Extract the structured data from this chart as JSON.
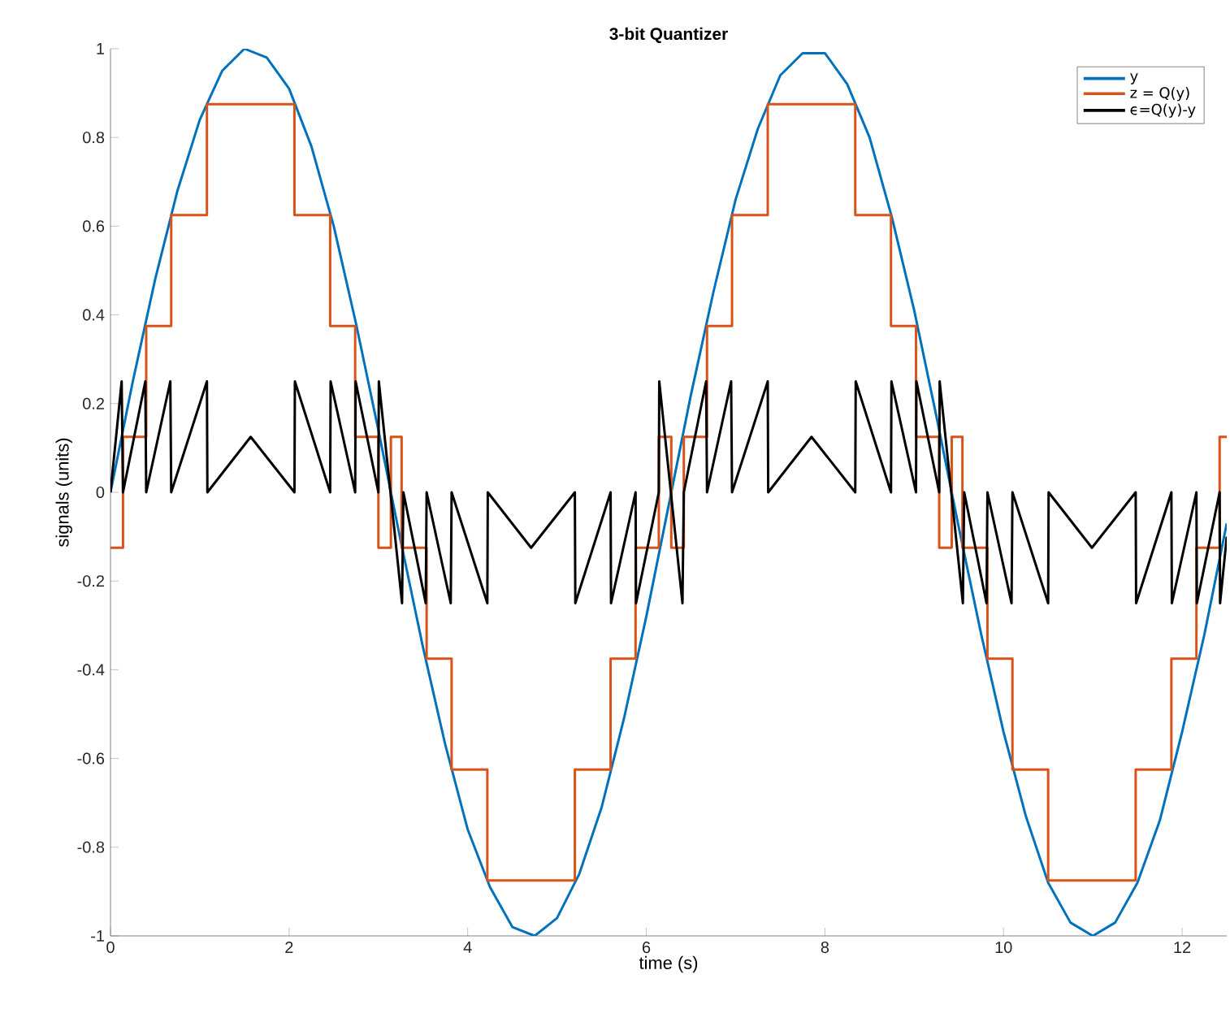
{
  "chart_data": {
    "type": "line",
    "title": "3-bit Quantizer",
    "xlabel": "time (s)",
    "ylabel": "signals (units)",
    "xlim": [
      0,
      12.5
    ],
    "ylim": [
      -1,
      1
    ],
    "xticks": [
      0,
      2,
      4,
      6,
      8,
      10,
      12
    ],
    "yticks": [
      -1,
      -0.8,
      -0.6,
      -0.4,
      -0.2,
      0,
      0.2,
      0.4,
      0.6,
      0.8,
      1
    ],
    "legend": "top right",
    "marker": "none",
    "line_style": "solid",
    "series": [
      {
        "name": "y",
        "color": "#0072bd",
        "x": [
          0,
          0.25,
          0.5,
          0.75,
          1,
          1.25,
          1.5,
          1.75,
          2,
          2.25,
          2.5,
          2.75,
          3,
          3.25,
          3.5,
          3.75,
          4,
          4.25,
          4.5,
          4.75,
          5,
          5.25,
          5.5,
          5.75,
          6,
          6.25,
          6.5,
          6.75,
          7,
          7.25,
          7.5,
          7.75,
          8,
          8.25,
          8.5,
          8.75,
          9,
          9.25,
          9.5,
          9.75,
          10,
          10.25,
          10.5,
          10.75,
          11,
          11.25,
          11.5,
          11.75,
          12,
          12.25,
          12.5
        ],
        "values": [
          0,
          0.25,
          0.48,
          0.68,
          0.84,
          0.95,
          1.0,
          0.98,
          0.91,
          0.78,
          0.6,
          0.38,
          0.14,
          -0.11,
          -0.35,
          -0.57,
          -0.76,
          -0.89,
          -0.98,
          -1.0,
          -0.96,
          -0.86,
          -0.71,
          -0.51,
          -0.28,
          -0.03,
          0.22,
          0.45,
          0.66,
          0.82,
          0.94,
          0.99,
          0.99,
          0.92,
          0.8,
          0.62,
          0.41,
          0.17,
          -0.08,
          -0.32,
          -0.54,
          -0.73,
          -0.88,
          -0.97,
          -1.0,
          -0.97,
          -0.88,
          -0.74,
          -0.54,
          -0.32,
          -0.07
        ]
      },
      {
        "name": "z = Q(y)",
        "type": "step",
        "color": "#d95319",
        "x": [
          0,
          0.14,
          0.4,
          0.68,
          1.08,
          2.06,
          2.46,
          2.74,
          3.0,
          3.14,
          3.26,
          3.54,
          3.82,
          4.22,
          5.2,
          5.6,
          5.88,
          6.14,
          6.28,
          6.42,
          6.68,
          6.96,
          7.36,
          8.34,
          8.74,
          9.02,
          9.28,
          9.42,
          9.54,
          9.82,
          10.1,
          10.5,
          11.48,
          11.88,
          12.16,
          12.42,
          12.5
        ],
        "values": [
          -0.125,
          0.125,
          0.375,
          0.625,
          0.875,
          0.625,
          0.375,
          0.125,
          -0.125,
          0.125,
          -0.125,
          -0.375,
          -0.625,
          -0.875,
          -0.625,
          -0.375,
          -0.125,
          0.125,
          -0.125,
          0.125,
          0.375,
          0.625,
          0.875,
          0.625,
          0.375,
          0.125,
          -0.125,
          0.125,
          -0.125,
          -0.375,
          -0.625,
          -0.875,
          -0.625,
          -0.375,
          -0.125,
          0.125,
          0.125
        ]
      },
      {
        "name": "ϵ=Q(y)-y",
        "color": "#000000",
        "x": [
          0,
          0.125,
          0.14,
          0.39,
          0.4,
          0.67,
          0.68,
          1.08,
          1.085,
          1.57,
          2.06,
          2.065,
          2.46,
          2.465,
          2.74,
          2.745,
          3.0,
          3.005,
          3.265,
          3.28,
          3.53,
          3.54,
          3.81,
          3.82,
          4.22,
          4.225,
          4.71,
          5.2,
          5.205,
          5.6,
          5.605,
          5.88,
          5.885,
          6.14,
          6.145,
          6.405,
          6.42,
          6.67,
          6.68,
          6.95,
          6.96,
          7.36,
          7.365,
          7.85,
          8.34,
          8.345,
          8.74,
          8.745,
          9.02,
          9.025,
          9.28,
          9.285,
          9.545,
          9.56,
          9.81,
          9.82,
          10.09,
          10.1,
          10.5,
          10.505,
          10.99,
          11.48,
          11.485,
          11.88,
          11.885,
          12.16,
          12.165,
          12.42,
          12.425,
          12.5
        ],
        "values": [
          0,
          0.25,
          0,
          0.25,
          0,
          0.25,
          0,
          0.25,
          0,
          0.125,
          0,
          0.25,
          0,
          0.25,
          0,
          0.25,
          0,
          0.25,
          -0.25,
          0,
          -0.25,
          0,
          -0.25,
          0,
          -0.25,
          0,
          -0.125,
          0,
          -0.25,
          0,
          -0.25,
          0,
          -0.25,
          0,
          0.25,
          -0.25,
          0,
          0.25,
          0,
          0.25,
          0,
          0.25,
          0,
          0.125,
          0,
          0.25,
          0,
          0.25,
          0,
          0.25,
          0,
          0.25,
          -0.25,
          0,
          -0.25,
          0,
          -0.25,
          0,
          -0.25,
          0,
          -0.125,
          0,
          -0.25,
          0,
          -0.25,
          0,
          -0.25,
          0,
          -0.25,
          -0.1
        ]
      }
    ]
  }
}
